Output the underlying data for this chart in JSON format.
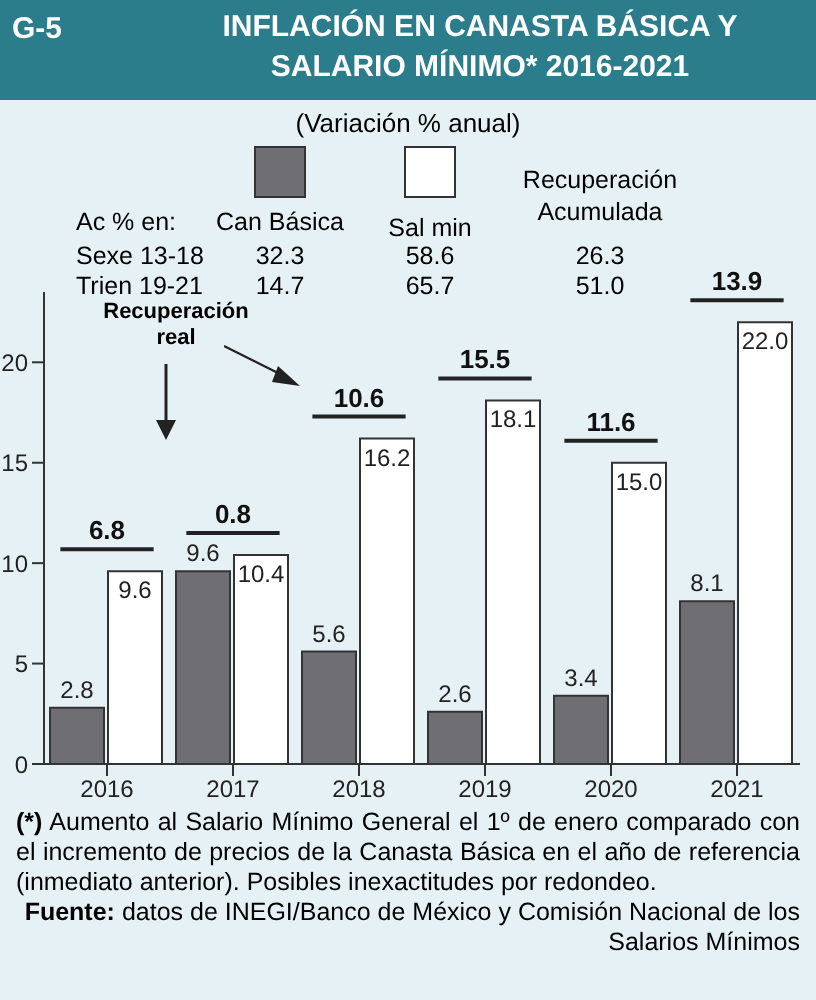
{
  "chart_data": {
    "type": "bar",
    "title": "INFLACIÓN EN CANASTA BÁSICA Y SALARIO MÍNIMO* 2016-2021",
    "subtitle": "(Variación % anual)",
    "categories": [
      "2016",
      "2017",
      "2018",
      "2019",
      "2020",
      "2021"
    ],
    "series": [
      {
        "name": "Can Básica",
        "color": "#6f6e73",
        "values": [
          2.8,
          9.6,
          5.6,
          2.6,
          3.4,
          8.1
        ],
        "value_labels": [
          "2.8",
          "9.6",
          "5.6",
          "2.6",
          "3.4",
          "8.1"
        ]
      },
      {
        "name": "Sal min",
        "color": "#ffffff",
        "values": [
          9.6,
          10.4,
          16.2,
          18.1,
          15.0,
          22.0
        ],
        "value_labels": [
          "9.6",
          "10.4",
          "16.2",
          "18.1",
          "15.0",
          "22.0"
        ]
      }
    ],
    "ylim": [
      0,
      23.5
    ],
    "yticks": [
      0,
      5,
      10,
      15,
      20
    ],
    "grid": false,
    "legend": "top",
    "annotations": [
      "G-5",
      "Recuperación real",
      "Ac % en:",
      "Recuperación Acumulada",
      "Sexe 13-18",
      "32.3",
      "58.6",
      "26.3",
      "Trien 19-21",
      "14.7",
      "65.7",
      "51.0",
      "(*) Aumento al Salario Mínimo General el 1º de enero comparado con el incremento de precios de la Canasta Básica en el año de referencia (inmediato anterior). Posibles inexactitudes por redondeo.",
      "Fuente: datos de INEGI/Banco de México y Comisión Nacional de los Salarios Mínimos",
      "6.8",
      "0.8",
      "10.6",
      "15.5",
      "11.6",
      "13.9"
    ]
  }
}
